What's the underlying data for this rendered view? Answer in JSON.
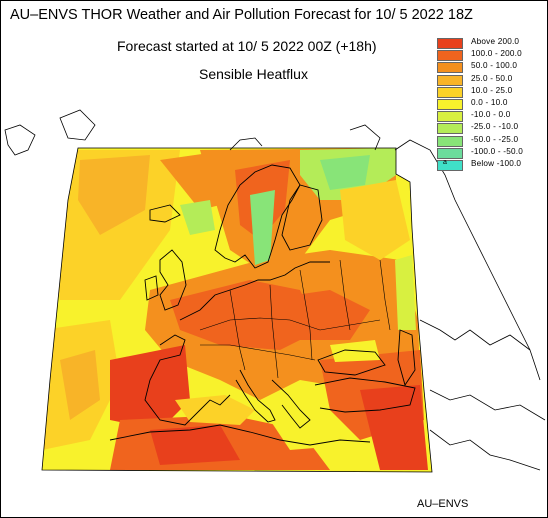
{
  "header": {
    "title": "AU–ENVS THOR Weather and Air Pollution Forecast for 10/ 5 2022  18Z",
    "forecast_start": "Forecast started at 10/ 5 2022  00Z (+18h)",
    "parameter": "Sensible Heatflux"
  },
  "legend": {
    "items": [
      {
        "label": "Above    200.0",
        "color": "#e8401c"
      },
      {
        "label": "100.0  -  200.0",
        "color": "#f0641e"
      },
      {
        "label": "50.0  -  100.0",
        "color": "#f4901e"
      },
      {
        "label": "25.0  -    50.0",
        "color": "#f8b428"
      },
      {
        "label": "10.0  -    25.0",
        "color": "#fcd228"
      },
      {
        "label": "0.0  -    10.0",
        "color": "#f8f22c"
      },
      {
        "label": "-10.0  -      0.0",
        "color": "#d8f040"
      },
      {
        "label": "-25.0  -  -10.0",
        "color": "#b4ec58"
      },
      {
        "label": "-50.0  -  -25.0",
        "color": "#88e478"
      },
      {
        "label": "-100.0  -  -50.0",
        "color": "#6cdc9c"
      },
      {
        "label": "Below  -100.0",
        "color": "#40e0c8",
        "mark": "a"
      }
    ]
  },
  "footer": {
    "brand": "AU–ENVS"
  }
}
